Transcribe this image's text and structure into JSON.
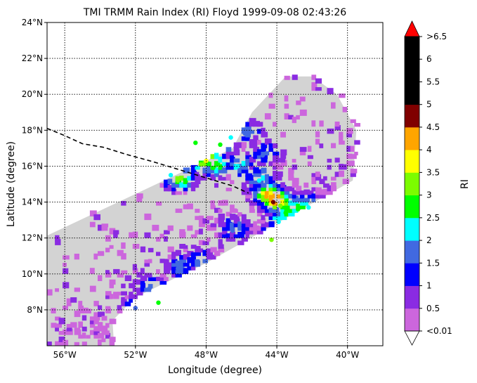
{
  "title": "TMI TRMM Rain Index (RI) Floyd 1999-09-08 02:43:26",
  "xlabel": "Longitude (degree)",
  "ylabel": "Latitude (degree)",
  "colorbar_label": "RI",
  "map": {
    "lon_range": [
      -57,
      -38
    ],
    "lat_range": [
      6,
      24
    ],
    "lon_ticks": [
      {
        "value": -56,
        "label": "56°W"
      },
      {
        "value": -52,
        "label": "52°W"
      },
      {
        "value": -48,
        "label": "48°W"
      },
      {
        "value": -44,
        "label": "44°W"
      },
      {
        "value": -40,
        "label": "40°W"
      }
    ],
    "lat_ticks": [
      {
        "value": 8,
        "label": "8°N"
      },
      {
        "value": 10,
        "label": "10°N"
      },
      {
        "value": 12,
        "label": "12°N"
      },
      {
        "value": 14,
        "label": "14°N"
      },
      {
        "value": 16,
        "label": "16°N"
      },
      {
        "value": 18,
        "label": "18°N"
      },
      {
        "value": 20,
        "label": "20°N"
      },
      {
        "value": 22,
        "label": "22°N"
      },
      {
        "value": 24,
        "label": "24°N"
      }
    ],
    "grid": "dotted",
    "swath_color": "#d3d3d3",
    "track": [
      {
        "lon": -57.0,
        "lat": 18.1
      },
      {
        "lon": -56.0,
        "lat": 17.7
      },
      {
        "lon": -55.0,
        "lat": 17.25
      },
      {
        "lon": -53.8,
        "lat": 17.05
      },
      {
        "lon": -52.5,
        "lat": 16.65
      },
      {
        "lon": -51.0,
        "lat": 16.25
      },
      {
        "lon": -49.5,
        "lat": 15.8
      },
      {
        "lon": -48.0,
        "lat": 15.35
      },
      {
        "lon": -46.5,
        "lat": 14.9
      },
      {
        "lon": -45.6,
        "lat": 14.5
      }
    ],
    "rain_cells": [
      {
        "lon": -48.3,
        "lat": 16.1,
        "level": 6
      },
      {
        "lon": -48.0,
        "lat": 16.3,
        "level": 7
      },
      {
        "lon": -47.6,
        "lat": 15.9,
        "level": 5
      },
      {
        "lon": -49.6,
        "lat": 15.2,
        "level": 6
      },
      {
        "lon": -50.0,
        "lat": 15.5,
        "level": 4
      },
      {
        "lon": -47.2,
        "lat": 17.2,
        "level": 5
      },
      {
        "lon": -46.6,
        "lat": 17.6,
        "level": 4
      },
      {
        "lon": -48.6,
        "lat": 17.3,
        "level": 5
      },
      {
        "lon": -46.2,
        "lat": 16.0,
        "level": 4
      },
      {
        "lon": -44.6,
        "lat": 14.3,
        "level": 8
      },
      {
        "lon": -44.2,
        "lat": 14.0,
        "level": 9
      },
      {
        "lon": -43.8,
        "lat": 13.8,
        "level": 6
      },
      {
        "lon": -43.5,
        "lat": 13.4,
        "level": 5
      },
      {
        "lon": -42.8,
        "lat": 13.6,
        "level": 5
      },
      {
        "lon": -42.2,
        "lat": 13.7,
        "level": 4
      },
      {
        "lon": -43.9,
        "lat": 12.9,
        "level": 4
      },
      {
        "lon": -44.3,
        "lat": 11.9,
        "level": 6
      },
      {
        "lon": -45.0,
        "lat": 15.2,
        "level": 4
      },
      {
        "lon": -48.5,
        "lat": 10.6,
        "level": 3
      },
      {
        "lon": -49.6,
        "lat": 10.3,
        "level": 3
      },
      {
        "lon": -50.7,
        "lat": 8.4,
        "level": 5
      },
      {
        "lon": -52.0,
        "lat": 8.1,
        "level": 3
      },
      {
        "lon": -51.2,
        "lat": 9.2,
        "level": 3
      },
      {
        "lon": -46.5,
        "lat": 12.4,
        "level": 3
      },
      {
        "lon": -45.8,
        "lat": 17.8,
        "level": 3
      },
      {
        "lon": -44.8,
        "lat": 16.6,
        "level": 3
      }
    ]
  },
  "colorbar": {
    "colors": [
      "#cc66dd",
      "#8a2be2",
      "#0000ff",
      "#4169e1",
      "#00ffff",
      "#00ff00",
      "#7cfc00",
      "#ffff00",
      "#ffa500",
      "#800000",
      "#000000",
      "#000000",
      "#000000",
      "#ff0000"
    ],
    "under_color": "#ffffff",
    "over_color": "#ff0000",
    "tick_labels": [
      "<0.01",
      "0.5",
      "1",
      "1.5",
      "2",
      "2.5",
      "3",
      "3.5",
      "4",
      "4.5",
      "5",
      "5.5",
      "6",
      ">6.5"
    ]
  }
}
